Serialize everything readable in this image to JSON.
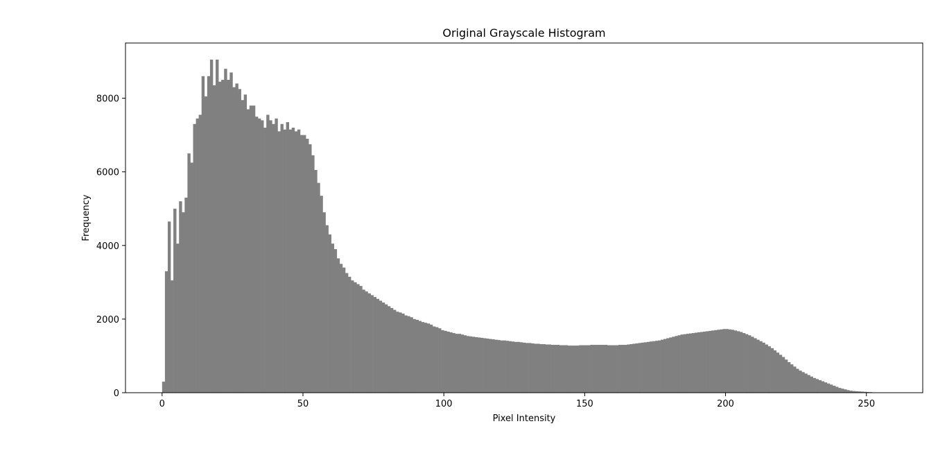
{
  "chart_data": {
    "type": "bar",
    "title": "Original Grayscale Histogram",
    "xlabel": "Pixel Intensity",
    "ylabel": "Frequency",
    "xlim": [
      -13,
      270
    ],
    "ylim": [
      0,
      9500
    ],
    "xticks": [
      0,
      50,
      100,
      150,
      200,
      250
    ],
    "yticks": [
      0,
      2000,
      4000,
      6000,
      8000
    ],
    "bar_color": "#808080",
    "grid": false,
    "bins_start": 0,
    "bin_width": 1,
    "values": [
      300,
      3300,
      4650,
      3050,
      5000,
      4050,
      5200,
      4900,
      5300,
      6500,
      6250,
      7300,
      7450,
      7550,
      8600,
      8050,
      8600,
      9050,
      8350,
      9050,
      8450,
      8500,
      8800,
      8500,
      8700,
      8300,
      8400,
      8250,
      7950,
      8100,
      7700,
      7800,
      7800,
      7500,
      7450,
      7400,
      7200,
      7550,
      7400,
      7300,
      7450,
      7100,
      7300,
      7150,
      7350,
      7150,
      7200,
      7100,
      7150,
      7000,
      7000,
      6900,
      6750,
      6450,
      6050,
      5700,
      5350,
      4900,
      4550,
      4300,
      4050,
      3900,
      3650,
      3500,
      3400,
      3250,
      3150,
      3050,
      3000,
      2950,
      2900,
      2800,
      2750,
      2700,
      2650,
      2600,
      2550,
      2500,
      2450,
      2400,
      2350,
      2300,
      2250,
      2200,
      2180,
      2150,
      2100,
      2080,
      2050,
      2000,
      1980,
      1950,
      1920,
      1900,
      1880,
      1850,
      1800,
      1780,
      1750,
      1700,
      1680,
      1660,
      1640,
      1620,
      1600,
      1600,
      1580,
      1560,
      1540,
      1530,
      1520,
      1510,
      1500,
      1490,
      1480,
      1470,
      1460,
      1450,
      1440,
      1430,
      1420,
      1420,
      1410,
      1400,
      1390,
      1380,
      1380,
      1370,
      1360,
      1350,
      1350,
      1340,
      1330,
      1330,
      1320,
      1320,
      1310,
      1310,
      1300,
      1300,
      1300,
      1290,
      1290,
      1290,
      1280,
      1280,
      1280,
      1280,
      1290,
      1290,
      1290,
      1290,
      1300,
      1300,
      1300,
      1300,
      1300,
      1300,
      1290,
      1290,
      1290,
      1290,
      1300,
      1300,
      1300,
      1310,
      1320,
      1330,
      1340,
      1350,
      1360,
      1370,
      1380,
      1390,
      1400,
      1410,
      1420,
      1440,
      1460,
      1480,
      1500,
      1520,
      1540,
      1560,
      1580,
      1590,
      1600,
      1610,
      1620,
      1630,
      1640,
      1650,
      1660,
      1670,
      1680,
      1690,
      1700,
      1710,
      1720,
      1730,
      1730,
      1720,
      1710,
      1690,
      1670,
      1650,
      1620,
      1590,
      1560,
      1520,
      1480,
      1440,
      1400,
      1360,
      1310,
      1260,
      1210,
      1150,
      1090,
      1030,
      970,
      900,
      830,
      770,
      710,
      650,
      600,
      560,
      520,
      480,
      440,
      400,
      370,
      340,
      310,
      280,
      250,
      220,
      190,
      160,
      130,
      110,
      90,
      70,
      55,
      45,
      40,
      35,
      30,
      25,
      20,
      15
    ]
  }
}
